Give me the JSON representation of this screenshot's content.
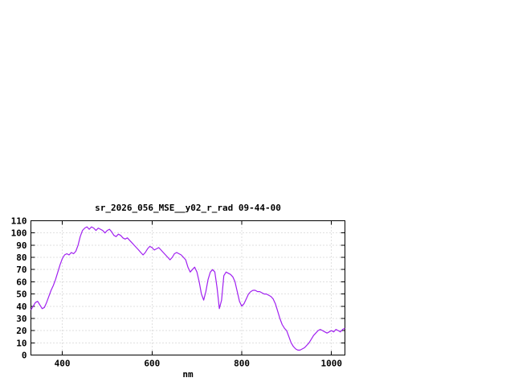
{
  "chart_data": {
    "type": "line",
    "title": "sr_2026_056_MSE__y02_r_rad 09-44-00",
    "xlabel": "nm",
    "ylabel": "",
    "xlim": [
      330,
      1030
    ],
    "ylim": [
      0,
      110
    ],
    "xticks": [
      400,
      600,
      800,
      1000
    ],
    "yticks": [
      0,
      10,
      20,
      30,
      40,
      50,
      60,
      70,
      80,
      90,
      100,
      110
    ],
    "grid": "on",
    "legend": "off",
    "colors": {
      "line": "#a020f0",
      "grid": "#c0c0c0",
      "border": "#000000",
      "text": "#000000"
    },
    "points": [
      [
        330,
        37
      ],
      [
        335,
        40
      ],
      [
        340,
        43
      ],
      [
        345,
        44
      ],
      [
        350,
        41
      ],
      [
        355,
        38
      ],
      [
        360,
        39
      ],
      [
        365,
        43
      ],
      [
        370,
        48
      ],
      [
        375,
        53
      ],
      [
        380,
        57
      ],
      [
        385,
        62
      ],
      [
        390,
        68
      ],
      [
        395,
        74
      ],
      [
        400,
        79
      ],
      [
        405,
        82
      ],
      [
        410,
        83
      ],
      [
        415,
        82
      ],
      [
        420,
        84
      ],
      [
        425,
        83
      ],
      [
        430,
        85
      ],
      [
        435,
        90
      ],
      [
        440,
        97
      ],
      [
        445,
        102
      ],
      [
        450,
        104
      ],
      [
        455,
        105
      ],
      [
        460,
        103
      ],
      [
        465,
        105
      ],
      [
        470,
        104
      ],
      [
        475,
        102
      ],
      [
        480,
        104
      ],
      [
        485,
        103
      ],
      [
        490,
        102
      ],
      [
        495,
        100
      ],
      [
        500,
        102
      ],
      [
        505,
        103
      ],
      [
        510,
        101
      ],
      [
        515,
        98
      ],
      [
        520,
        97
      ],
      [
        525,
        99
      ],
      [
        530,
        98
      ],
      [
        535,
        96
      ],
      [
        540,
        95
      ],
      [
        545,
        96
      ],
      [
        550,
        94
      ],
      [
        555,
        92
      ],
      [
        560,
        90
      ],
      [
        565,
        88
      ],
      [
        570,
        86
      ],
      [
        575,
        84
      ],
      [
        580,
        82
      ],
      [
        585,
        84
      ],
      [
        590,
        87
      ],
      [
        595,
        89
      ],
      [
        600,
        88
      ],
      [
        605,
        86
      ],
      [
        610,
        87
      ],
      [
        615,
        88
      ],
      [
        620,
        86
      ],
      [
        625,
        84
      ],
      [
        630,
        82
      ],
      [
        635,
        80
      ],
      [
        640,
        78
      ],
      [
        645,
        80
      ],
      [
        650,
        83
      ],
      [
        655,
        84
      ],
      [
        660,
        83
      ],
      [
        665,
        82
      ],
      [
        670,
        80
      ],
      [
        675,
        78
      ],
      [
        680,
        72
      ],
      [
        685,
        68
      ],
      [
        690,
        70
      ],
      [
        695,
        72
      ],
      [
        700,
        68
      ],
      [
        705,
        60
      ],
      [
        710,
        50
      ],
      [
        715,
        45
      ],
      [
        720,
        52
      ],
      [
        725,
        62
      ],
      [
        730,
        68
      ],
      [
        735,
        70
      ],
      [
        740,
        68
      ],
      [
        745,
        55
      ],
      [
        750,
        38
      ],
      [
        755,
        45
      ],
      [
        760,
        65
      ],
      [
        765,
        68
      ],
      [
        770,
        67
      ],
      [
        775,
        66
      ],
      [
        780,
        64
      ],
      [
        785,
        60
      ],
      [
        790,
        52
      ],
      [
        795,
        44
      ],
      [
        800,
        40
      ],
      [
        805,
        42
      ],
      [
        810,
        46
      ],
      [
        815,
        50
      ],
      [
        820,
        52
      ],
      [
        825,
        53
      ],
      [
        830,
        53
      ],
      [
        835,
        52
      ],
      [
        840,
        52
      ],
      [
        845,
        51
      ],
      [
        850,
        50
      ],
      [
        855,
        50
      ],
      [
        860,
        49
      ],
      [
        865,
        48
      ],
      [
        870,
        46
      ],
      [
        875,
        42
      ],
      [
        880,
        36
      ],
      [
        885,
        30
      ],
      [
        890,
        25
      ],
      [
        895,
        22
      ],
      [
        900,
        20
      ],
      [
        905,
        15
      ],
      [
        910,
        10
      ],
      [
        915,
        7
      ],
      [
        920,
        5
      ],
      [
        925,
        4
      ],
      [
        930,
        4
      ],
      [
        935,
        5
      ],
      [
        940,
        6
      ],
      [
        945,
        8
      ],
      [
        950,
        10
      ],
      [
        955,
        13
      ],
      [
        960,
        16
      ],
      [
        965,
        18
      ],
      [
        970,
        20
      ],
      [
        975,
        21
      ],
      [
        980,
        20
      ],
      [
        985,
        19
      ],
      [
        990,
        18
      ],
      [
        995,
        19
      ],
      [
        1000,
        20
      ],
      [
        1005,
        19
      ],
      [
        1010,
        21
      ],
      [
        1015,
        20
      ],
      [
        1020,
        19
      ],
      [
        1025,
        21
      ],
      [
        1030,
        22
      ]
    ]
  }
}
